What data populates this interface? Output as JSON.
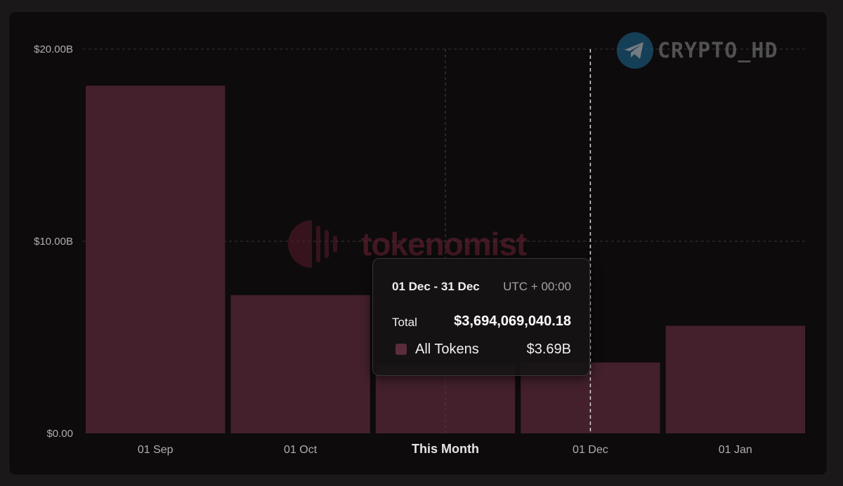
{
  "chart_data": {
    "type": "bar",
    "categories": [
      "01 Sep",
      "01 Oct",
      "This Month",
      "01 Dec",
      "01 Jan"
    ],
    "series": [
      {
        "name": "All Tokens",
        "values": [
          18.1,
          7.2,
          3.6,
          3.69,
          5.6
        ]
      }
    ],
    "yticks": [
      "$20.00B",
      "$10.00B",
      "$0.00"
    ],
    "ylim": [
      0,
      20
    ],
    "y_unit": "B USD",
    "grid": true,
    "highlighted_category": "This Month",
    "bar_color": "#43202c",
    "grid_color": "#3a3437"
  },
  "tooltip": {
    "range": "01 Dec - 31 Dec",
    "timezone": "UTC + 00:00",
    "total_label": "Total",
    "total_value": "$3,694,069,040.18",
    "series_name": "All Tokens",
    "series_value": "$3.69B"
  },
  "watermarks": {
    "crypto": "CRYPTO_HD",
    "tokenomist": "tokenomist"
  }
}
